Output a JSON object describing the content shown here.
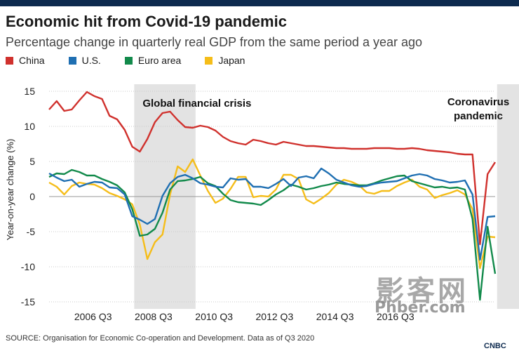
{
  "header": {
    "title": "Economic hit from Covid-19 pandemic",
    "subtitle": "Percentage change in quarterly real GDP from the same period a year ago"
  },
  "legend": [
    {
      "label": "China",
      "color": "#d0312d"
    },
    {
      "label": "U.S.",
      "color": "#1f6fb2"
    },
    {
      "label": "Euro area",
      "color": "#128a4b"
    },
    {
      "label": "Japan",
      "color": "#f5bd19"
    }
  ],
  "footer": {
    "source": "SOURCE: Organisation for Economic Co-operation and Development. Data as of Q3 2020",
    "logo_text": "CNBC"
  },
  "watermark": {
    "cjk": "影客网",
    "url": "Phber.com"
  },
  "chart_data": {
    "type": "line",
    "title": "Economic hit from Covid-19 pandemic",
    "ylabel": "Year-on-year change (%)",
    "xlabel": "",
    "ylim": [
      -16,
      16
    ],
    "yticks": [
      15,
      10,
      5,
      0,
      -5,
      -10,
      -15
    ],
    "x_start": "2005 Q1",
    "x_end": "2020 Q3",
    "xticks": [
      {
        "label": "2006 Q3",
        "index": 6
      },
      {
        "label": "2008 Q3",
        "index": 14
      },
      {
        "label": "2010 Q3",
        "index": 22
      },
      {
        "label": "2012 Q3",
        "index": 30
      },
      {
        "label": "2014 Q3",
        "index": 38
      },
      {
        "label": "2016 Q3",
        "index": 46
      }
    ],
    "shaded_regions": [
      {
        "label": "Global financial crisis",
        "start_index": 12,
        "end_index": 19
      },
      {
        "label": "Coronavirus pandemic",
        "start_index": 60,
        "end_index": 62
      }
    ],
    "series": [
      {
        "name": "China",
        "color": "#d0312d",
        "values": [
          12.4,
          13.6,
          12.2,
          12.4,
          13.7,
          14.9,
          14.3,
          13.9,
          11.5,
          11.0,
          9.5,
          7.1,
          6.4,
          8.2,
          10.6,
          11.9,
          12.1,
          10.9,
          9.9,
          9.8,
          10.1,
          9.9,
          9.4,
          8.5,
          7.9,
          7.6,
          7.4,
          8.1,
          7.9,
          7.6,
          7.4,
          7.8,
          7.6,
          7.4,
          7.2,
          7.2,
          7.1,
          7.0,
          6.9,
          6.9,
          6.8,
          6.8,
          6.8,
          6.9,
          6.9,
          6.9,
          6.8,
          6.8,
          6.9,
          6.8,
          6.6,
          6.5,
          6.4,
          6.3,
          6.1,
          6.0,
          6.0,
          -6.8,
          3.2,
          4.9
        ]
      },
      {
        "name": "U.S.",
        "color": "#1f6fb2",
        "values": [
          3.3,
          2.7,
          2.2,
          2.4,
          1.4,
          1.8,
          2.1,
          2.0,
          1.3,
          1.2,
          0.3,
          -2.8,
          -3.3,
          -3.9,
          -3.2,
          0.1,
          1.9,
          2.8,
          3.1,
          2.6,
          1.9,
          1.7,
          1.4,
          1.3,
          2.6,
          2.4,
          2.5,
          1.4,
          1.4,
          1.2,
          1.8,
          2.5,
          1.5,
          2.7,
          2.9,
          2.6,
          4.0,
          3.3,
          2.4,
          2.0,
          1.6,
          1.4,
          1.5,
          1.8,
          2.0,
          2.1,
          2.2,
          2.6,
          3.0,
          3.2,
          3.0,
          2.5,
          2.3,
          2.0,
          2.1,
          2.3,
          0.3,
          -9.0,
          -2.9,
          -2.8
        ]
      },
      {
        "name": "Euro area",
        "color": "#128a4b",
        "values": [
          2.8,
          3.3,
          3.2,
          3.8,
          3.5,
          3.0,
          3.0,
          2.5,
          2.1,
          1.6,
          0.6,
          -1.8,
          -5.6,
          -5.4,
          -4.6,
          -2.3,
          1.0,
          2.2,
          2.3,
          2.5,
          2.8,
          1.9,
          1.5,
          0.4,
          -0.5,
          -0.8,
          -0.9,
          -1.0,
          -1.2,
          -0.5,
          0.3,
          0.9,
          1.7,
          1.4,
          1.0,
          1.2,
          1.5,
          1.7,
          2.0,
          1.8,
          1.7,
          1.6,
          1.6,
          1.9,
          2.3,
          2.6,
          2.9,
          3.0,
          2.2,
          1.9,
          1.6,
          1.3,
          1.4,
          1.2,
          1.3,
          1.0,
          -3.2,
          -14.7,
          -4.3,
          -11.0
        ]
      },
      {
        "name": "Japan",
        "color": "#f5bd19",
        "values": [
          2.0,
          1.4,
          0.3,
          1.5,
          2.0,
          1.8,
          1.7,
          1.2,
          0.5,
          0.1,
          -0.4,
          -1.1,
          -4.0,
          -8.9,
          -6.5,
          -5.4,
          0.3,
          4.3,
          3.5,
          5.3,
          3.0,
          0.8,
          -0.9,
          -0.3,
          1.1,
          2.8,
          2.8,
          -0.1,
          0.1,
          0.0,
          1.0,
          3.1,
          3.1,
          2.5,
          -0.4,
          -1.0,
          -0.3,
          0.5,
          1.7,
          2.4,
          2.1,
          1.6,
          0.6,
          0.4,
          0.8,
          0.8,
          1.5,
          2.0,
          2.4,
          1.4,
          1.0,
          -0.2,
          0.2,
          0.5,
          0.9,
          0.3,
          -1.8,
          -10.2,
          -5.7,
          -5.8
        ]
      }
    ]
  }
}
